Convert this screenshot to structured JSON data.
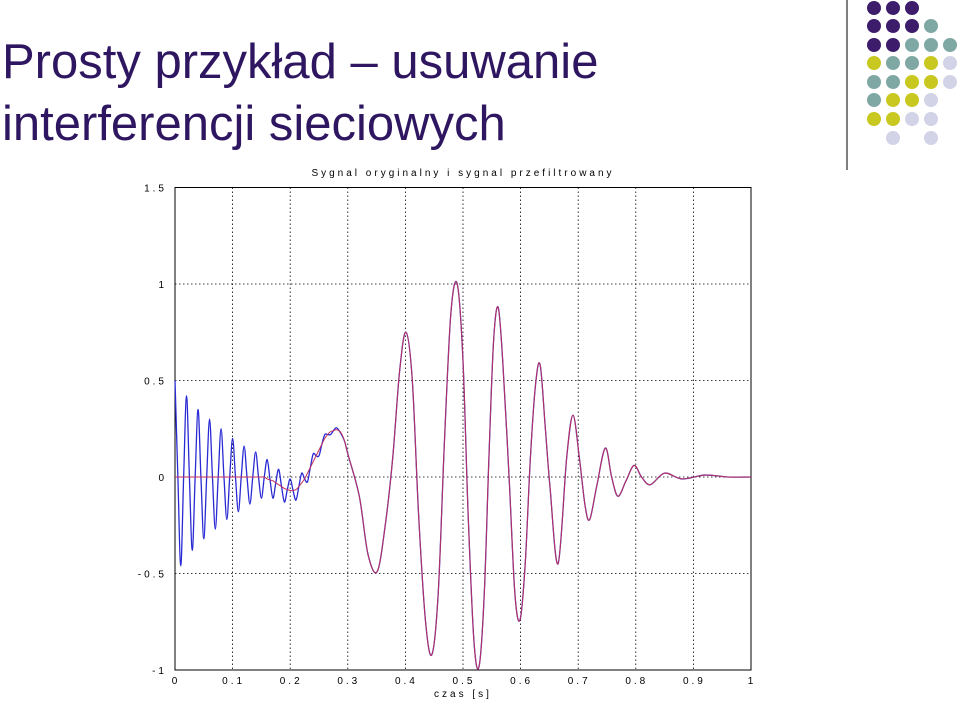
{
  "slide_title": [
    "Prosty przykład – usuwanie",
    "interferencji sieciowych"
  ],
  "chart_data": {
    "type": "line",
    "title": "Sygnal oryginalny i sygnal przefiltrowany",
    "x_label": "czas [s]",
    "x": [
      0,
      0.005,
      0.01,
      0.015,
      0.02,
      0.025,
      0.03,
      0.035,
      0.04,
      0.045,
      0.05,
      0.055,
      0.06,
      0.065,
      0.07,
      0.075,
      0.08,
      0.085,
      0.09,
      0.095,
      0.1,
      0.105,
      0.11,
      0.115,
      0.12,
      0.125,
      0.13,
      0.135,
      0.14,
      0.145,
      0.15,
      0.155,
      0.16,
      0.165,
      0.17,
      0.175,
      0.18,
      0.185,
      0.19,
      0.195,
      0.2,
      0.205,
      0.21,
      0.215,
      0.22,
      0.225,
      0.23,
      0.235,
      0.24,
      0.245,
      0.25,
      0.255,
      0.26,
      0.265,
      0.27,
      0.275,
      0.28,
      0.285,
      0.29,
      0.295,
      0.3,
      0.32,
      0.335,
      0.351,
      0.365,
      0.378,
      0.39,
      0.401,
      0.412,
      0.423,
      0.435,
      0.446,
      0.457,
      0.468,
      0.479,
      0.49,
      0.5,
      0.509,
      0.519,
      0.528,
      0.537,
      0.545,
      0.553,
      0.561,
      0.569,
      0.58,
      0.59,
      0.599,
      0.608,
      0.617,
      0.626,
      0.634,
      0.643,
      0.651,
      0.665,
      0.68,
      0.691,
      0.702,
      0.712,
      0.72,
      0.732,
      0.747,
      0.758,
      0.769,
      0.783,
      0.797,
      0.81,
      0.825,
      0.85,
      0.88,
      0.92,
      0.96,
      1
    ],
    "series": [
      {
        "color": "#2a2ad4",
        "values": [
          0.5,
          0,
          -0.46,
          0,
          0.42,
          0,
          -0.38,
          0,
          0.35,
          0,
          -0.32,
          0,
          0.3,
          0,
          -0.27,
          0,
          0.25,
          0,
          -0.22,
          0,
          0.2,
          0,
          -0.18,
          0,
          0.16,
          0,
          -0.14,
          0,
          0.13,
          0,
          -0.11,
          0,
          0.09,
          -0.015,
          -0.11,
          -0.03,
          0.04,
          -0.05,
          -0.13,
          -0.065,
          -0.01,
          -0.07,
          -0.12,
          -0.05,
          0.02,
          -0.01,
          -0.025,
          0.05,
          0.12,
          0.11,
          0.11,
          0.17,
          0.22,
          0.22,
          0.22,
          0.24,
          0.255,
          0.24,
          0.215,
          0.18,
          0.12,
          -0.1,
          -0.4,
          -0.49,
          -0.25,
          0.1,
          0.55,
          0.75,
          0.5,
          -0.2,
          -0.75,
          -0.92,
          -0.6,
          0.2,
          0.85,
          1,
          0.6,
          -0.2,
          -0.85,
          -0.98,
          -0.6,
          0.1,
          0.7,
          0.88,
          0.6,
          0,
          -0.6,
          -0.74,
          -0.45,
          0.1,
          0.48,
          0.58,
          0.25,
          -0.05,
          -0.45,
          0.1,
          0.32,
          0.1,
          -0.15,
          -0.22,
          -0.05,
          0.15,
          0,
          -0.1,
          -0.02,
          0.06,
          0,
          -0.04,
          0.02,
          -0.01,
          0.01,
          0,
          0
        ]
      },
      {
        "color": "#c0305a",
        "values": [
          0,
          0,
          0,
          0,
          0,
          0,
          0,
          0,
          0,
          0,
          0,
          0,
          0,
          0,
          0,
          0,
          0,
          0,
          0,
          0,
          0,
          0,
          0,
          0,
          0,
          0,
          0,
          0,
          0,
          0,
          0,
          0,
          -0.01,
          -0.015,
          -0.02,
          -0.03,
          -0.04,
          -0.05,
          -0.06,
          -0.065,
          -0.07,
          -0.07,
          -0.065,
          -0.05,
          -0.03,
          -0.01,
          0.02,
          0.05,
          0.08,
          0.11,
          0.14,
          0.17,
          0.2,
          0.22,
          0.235,
          0.24,
          0.245,
          0.24,
          0.22,
          0.18,
          0.12,
          -0.1,
          -0.4,
          -0.49,
          -0.25,
          0.1,
          0.55,
          0.75,
          0.5,
          -0.2,
          -0.75,
          -0.92,
          -0.6,
          0.2,
          0.85,
          1,
          0.6,
          -0.2,
          -0.85,
          -0.98,
          -0.6,
          0.1,
          0.7,
          0.88,
          0.6,
          0,
          -0.6,
          -0.74,
          -0.45,
          0.1,
          0.48,
          0.58,
          0.25,
          -0.05,
          -0.45,
          0.1,
          0.32,
          0.1,
          -0.15,
          -0.22,
          -0.05,
          0.15,
          0,
          -0.1,
          -0.02,
          0.06,
          0,
          -0.04,
          0.02,
          -0.01,
          0.01,
          0,
          0
        ]
      }
    ],
    "xlim": [
      0,
      1
    ],
    "xticks": [
      0,
      0.1,
      0.2,
      0.3,
      0.4,
      0.5,
      0.6,
      0.7,
      0.8,
      0.9,
      1
    ],
    "ylim": [
      -1,
      1.5
    ],
    "yticks": [
      -1,
      -0.5,
      0,
      0.5,
      1,
      1.5
    ],
    "grid": true
  }
}
